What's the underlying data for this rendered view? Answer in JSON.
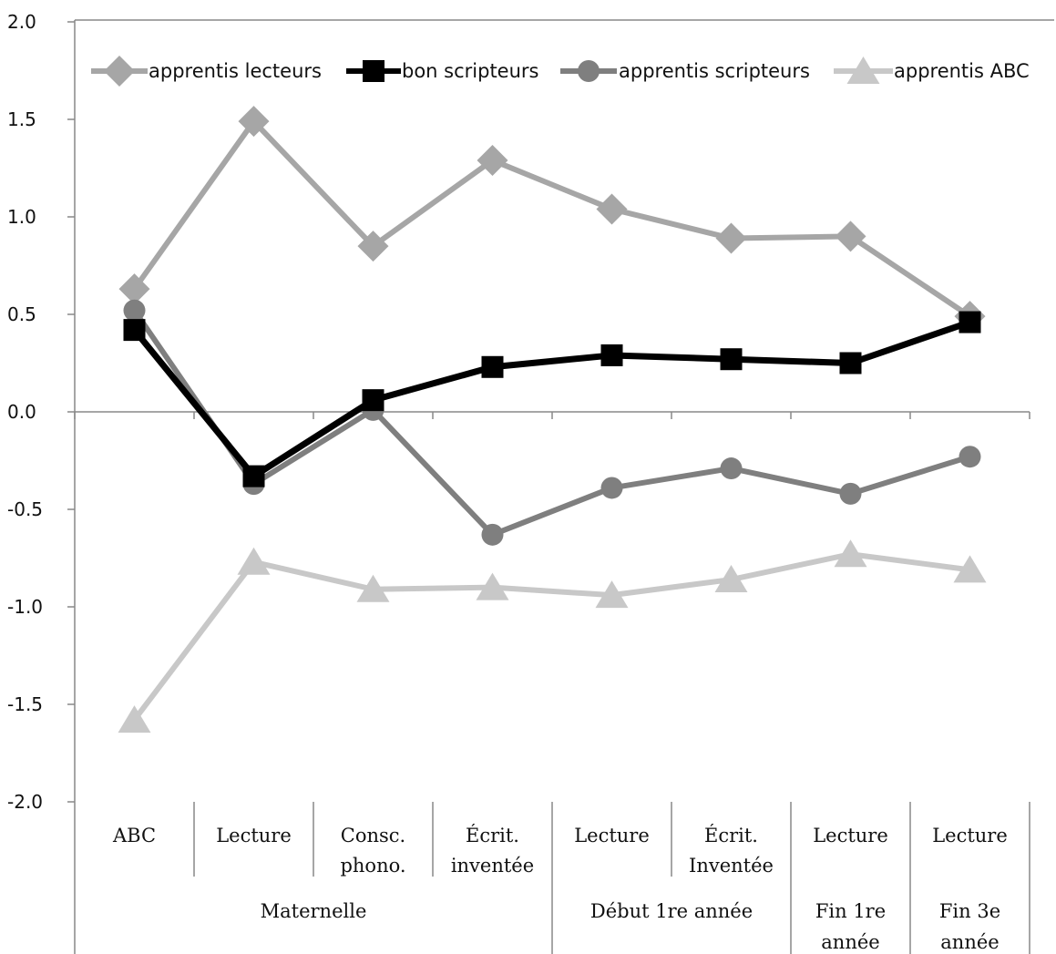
{
  "chart_data": {
    "type": "line",
    "ylim": [
      -2.0,
      2.0
    ],
    "yticks": [
      "2.0",
      "1.5",
      "1.0",
      "0.5",
      "0.0",
      "-0.5",
      "-1.0",
      "-1.5",
      "-2.0"
    ],
    "categories": [
      [
        "ABC"
      ],
      [
        "Lecture"
      ],
      [
        "Consc.",
        "phono."
      ],
      [
        "Écrit.",
        "inventée"
      ],
      [
        "Lecture"
      ],
      [
        "Écrit.",
        "Inventée"
      ],
      [
        "Lecture"
      ],
      [
        "Lecture"
      ]
    ],
    "groups": [
      {
        "label": [
          "Maternelle"
        ],
        "span": 4
      },
      {
        "label": [
          "Début 1re année"
        ],
        "span": 2
      },
      {
        "label": [
          "Fin 1re",
          "année"
        ],
        "span": 1
      },
      {
        "label": [
          "Fin 3e",
          "année"
        ],
        "span": 1
      }
    ],
    "legend_position": "top",
    "series": [
      {
        "name": "apprentis lecteurs",
        "color": "#a6a6a6",
        "marker": "diamond",
        "values": [
          0.63,
          1.49,
          0.85,
          1.29,
          1.04,
          0.89,
          0.9,
          0.49
        ]
      },
      {
        "name": "bon scripteurs",
        "color": "#000000",
        "marker": "square",
        "values": [
          0.42,
          -0.33,
          0.06,
          0.23,
          0.29,
          0.27,
          0.25,
          0.46
        ]
      },
      {
        "name": "apprentis scripteurs",
        "color": "#7f7f7f",
        "marker": "circle",
        "values": [
          0.52,
          -0.37,
          0.01,
          -0.63,
          -0.39,
          -0.29,
          -0.42,
          -0.23
        ]
      },
      {
        "name": "apprentis ABC",
        "color": "#c8c8c8",
        "marker": "triangle",
        "values": [
          -1.58,
          -0.77,
          -0.91,
          -0.9,
          -0.94,
          -0.86,
          -0.73,
          -0.81
        ]
      }
    ]
  }
}
